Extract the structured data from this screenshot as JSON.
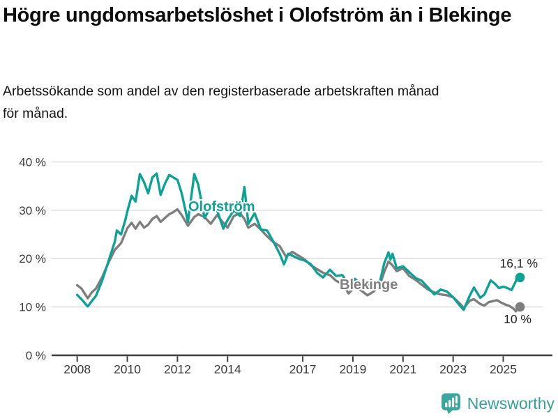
{
  "header": {
    "title": "Högre ungdomsarbetslöshet i Olofström än i Blekinge",
    "subtitle": "Arbetssökande som andel av den registerbaserade arbetskraften månad för månad."
  },
  "footer": {
    "brand": "Newsworthy",
    "logo_icon": "bar-chart-speech-bubble-icon"
  },
  "colors": {
    "olofstrom": "#0da296",
    "blekinge": "#7e7e7e",
    "grid": "#d9d9d9",
    "axis": "#3d3d3d",
    "tick_text": "#3a3a3a",
    "end_label_text": "#222222",
    "brand_teal": "#3ba59e",
    "halo": "#ffffff"
  },
  "chart_data": {
    "type": "line",
    "title": "Högre ungdomsarbetslöshet i Olofström än i Blekinge",
    "subtitle": "Arbetssökande som andel av den registerbaserade arbetskraften månad för månad.",
    "unit": "%",
    "grid": "horizontal",
    "legend_position": "inline-labels",
    "x_axis": {
      "ticks": [
        2008,
        2010,
        2012,
        2014,
        2017,
        2019,
        2021,
        2023,
        2025
      ],
      "range": [
        2008,
        2026.3
      ]
    },
    "y_axis": {
      "tick_labels": [
        "0 %",
        "10 %",
        "20 %",
        "30 %",
        "40 %"
      ],
      "tick_values": [
        0,
        10,
        20,
        30,
        40
      ],
      "range": [
        0,
        44.6
      ]
    },
    "series": [
      {
        "name": "Olofström",
        "color": "#0da296",
        "end_label": "16,1 %",
        "end_value": 16.1,
        "points": [
          [
            2008.0,
            12.5
          ],
          [
            2008.17,
            11.6
          ],
          [
            2008.42,
            10.1
          ],
          [
            2008.58,
            11.2
          ],
          [
            2008.75,
            12.3
          ],
          [
            2009.0,
            15.5
          ],
          [
            2009.25,
            19.5
          ],
          [
            2009.5,
            23.5
          ],
          [
            2009.58,
            25.8
          ],
          [
            2009.75,
            25.0
          ],
          [
            2009.92,
            28.0
          ],
          [
            2010.0,
            29.8
          ],
          [
            2010.17,
            33.0
          ],
          [
            2010.33,
            31.8
          ],
          [
            2010.5,
            37.5
          ],
          [
            2010.67,
            35.8
          ],
          [
            2010.83,
            33.5
          ],
          [
            2011.0,
            36.8
          ],
          [
            2011.17,
            37.6
          ],
          [
            2011.33,
            33.2
          ],
          [
            2011.5,
            35.5
          ],
          [
            2011.67,
            37.3
          ],
          [
            2011.83,
            36.8
          ],
          [
            2012.0,
            36.3
          ],
          [
            2012.17,
            33.5
          ],
          [
            2012.42,
            27.6
          ],
          [
            2012.67,
            37.5
          ],
          [
            2012.83,
            35.3
          ],
          [
            2013.08,
            28.4
          ],
          [
            2013.33,
            30.8
          ],
          [
            2013.58,
            30.0
          ],
          [
            2013.83,
            26.2
          ],
          [
            2014.0,
            28.0
          ],
          [
            2014.25,
            30.0
          ],
          [
            2014.5,
            28.8
          ],
          [
            2014.67,
            34.8
          ],
          [
            2014.83,
            27.2
          ],
          [
            2015.08,
            29.4
          ],
          [
            2015.33,
            26.0
          ],
          [
            2015.58,
            25.8
          ],
          [
            2015.83,
            23.5
          ],
          [
            2016.08,
            21.0
          ],
          [
            2016.25,
            18.8
          ],
          [
            2016.42,
            21.0
          ],
          [
            2016.58,
            20.6
          ],
          [
            2016.83,
            20.0
          ],
          [
            2017.08,
            19.6
          ],
          [
            2017.33,
            18.8
          ],
          [
            2017.58,
            17.0
          ],
          [
            2017.81,
            16.1
          ],
          [
            2018.08,
            17.7
          ],
          [
            2018.33,
            16.4
          ],
          [
            2018.58,
            16.6
          ],
          [
            2018.83,
            14.6
          ],
          [
            2019.08,
            15.8
          ],
          [
            2019.33,
            14.6
          ],
          [
            2019.58,
            14.9
          ],
          [
            2019.83,
            13.8
          ],
          [
            2020.08,
            15.2
          ],
          [
            2020.25,
            19.0
          ],
          [
            2020.42,
            21.3
          ],
          [
            2020.5,
            19.8
          ],
          [
            2020.58,
            21.0
          ],
          [
            2020.75,
            18.0
          ],
          [
            2021.0,
            18.4
          ],
          [
            2021.25,
            17.2
          ],
          [
            2021.5,
            16.0
          ],
          [
            2021.75,
            15.4
          ],
          [
            2022.0,
            14.0
          ],
          [
            2022.25,
            12.6
          ],
          [
            2022.5,
            13.6
          ],
          [
            2022.75,
            13.2
          ],
          [
            2023.0,
            12.0
          ],
          [
            2023.25,
            10.4
          ],
          [
            2023.42,
            9.4
          ],
          [
            2023.67,
            12.4
          ],
          [
            2023.83,
            14.0
          ],
          [
            2024.08,
            11.9
          ],
          [
            2024.25,
            12.6
          ],
          [
            2024.5,
            15.5
          ],
          [
            2024.67,
            14.8
          ],
          [
            2024.83,
            13.9
          ],
          [
            2025.0,
            14.2
          ],
          [
            2025.17,
            13.9
          ],
          [
            2025.33,
            13.5
          ],
          [
            2025.5,
            15.3
          ],
          [
            2025.58,
            16.5
          ],
          [
            2025.67,
            16.1
          ]
        ]
      },
      {
        "name": "Blekinge",
        "color": "#7e7e7e",
        "end_label": "10 %",
        "end_value": 10,
        "points": [
          [
            2008.0,
            14.5
          ],
          [
            2008.17,
            13.8
          ],
          [
            2008.42,
            11.8
          ],
          [
            2008.58,
            13.0
          ],
          [
            2008.75,
            13.8
          ],
          [
            2009.0,
            16.2
          ],
          [
            2009.25,
            19.2
          ],
          [
            2009.5,
            21.8
          ],
          [
            2009.75,
            23.2
          ],
          [
            2010.0,
            26.3
          ],
          [
            2010.17,
            27.4
          ],
          [
            2010.33,
            26.2
          ],
          [
            2010.5,
            27.6
          ],
          [
            2010.67,
            26.4
          ],
          [
            2010.83,
            27.0
          ],
          [
            2011.0,
            28.2
          ],
          [
            2011.17,
            28.8
          ],
          [
            2011.33,
            27.6
          ],
          [
            2011.5,
            28.4
          ],
          [
            2011.67,
            29.2
          ],
          [
            2011.83,
            29.6
          ],
          [
            2012.0,
            30.2
          ],
          [
            2012.17,
            29.0
          ],
          [
            2012.42,
            26.8
          ],
          [
            2012.67,
            28.6
          ],
          [
            2012.83,
            29.2
          ],
          [
            2013.08,
            28.6
          ],
          [
            2013.33,
            27.2
          ],
          [
            2013.58,
            29.0
          ],
          [
            2013.83,
            27.4
          ],
          [
            2014.0,
            26.4
          ],
          [
            2014.25,
            28.8
          ],
          [
            2014.5,
            29.4
          ],
          [
            2014.67,
            28.2
          ],
          [
            2014.83,
            26.4
          ],
          [
            2015.08,
            27.2
          ],
          [
            2015.33,
            26.0
          ],
          [
            2015.58,
            24.6
          ],
          [
            2015.83,
            23.4
          ],
          [
            2016.08,
            22.6
          ],
          [
            2016.33,
            20.4
          ],
          [
            2016.58,
            21.4
          ],
          [
            2016.83,
            20.6
          ],
          [
            2017.08,
            19.8
          ],
          [
            2017.33,
            18.6
          ],
          [
            2017.58,
            17.8
          ],
          [
            2017.83,
            17.0
          ],
          [
            2018.08,
            16.6
          ],
          [
            2018.33,
            15.4
          ],
          [
            2018.58,
            14.8
          ],
          [
            2018.83,
            12.8
          ],
          [
            2019.08,
            14.2
          ],
          [
            2019.33,
            13.4
          ],
          [
            2019.58,
            12.4
          ],
          [
            2019.83,
            13.2
          ],
          [
            2020.08,
            14.6
          ],
          [
            2020.25,
            17.2
          ],
          [
            2020.42,
            19.4
          ],
          [
            2020.58,
            18.6
          ],
          [
            2020.75,
            17.4
          ],
          [
            2021.0,
            18.0
          ],
          [
            2021.25,
            16.4
          ],
          [
            2021.5,
            15.6
          ],
          [
            2021.75,
            14.6
          ],
          [
            2022.0,
            13.6
          ],
          [
            2022.25,
            13.0
          ],
          [
            2022.5,
            12.6
          ],
          [
            2022.75,
            12.4
          ],
          [
            2023.0,
            12.0
          ],
          [
            2023.25,
            10.8
          ],
          [
            2023.42,
            9.8
          ],
          [
            2023.67,
            11.3
          ],
          [
            2023.83,
            11.6
          ],
          [
            2024.08,
            10.6
          ],
          [
            2024.25,
            10.3
          ],
          [
            2024.42,
            11.0
          ],
          [
            2024.58,
            11.2
          ],
          [
            2024.75,
            11.4
          ],
          [
            2024.92,
            10.9
          ],
          [
            2025.08,
            10.5
          ],
          [
            2025.25,
            10.2
          ],
          [
            2025.42,
            9.6
          ],
          [
            2025.5,
            9.1
          ],
          [
            2025.67,
            10.0
          ]
        ]
      }
    ]
  }
}
